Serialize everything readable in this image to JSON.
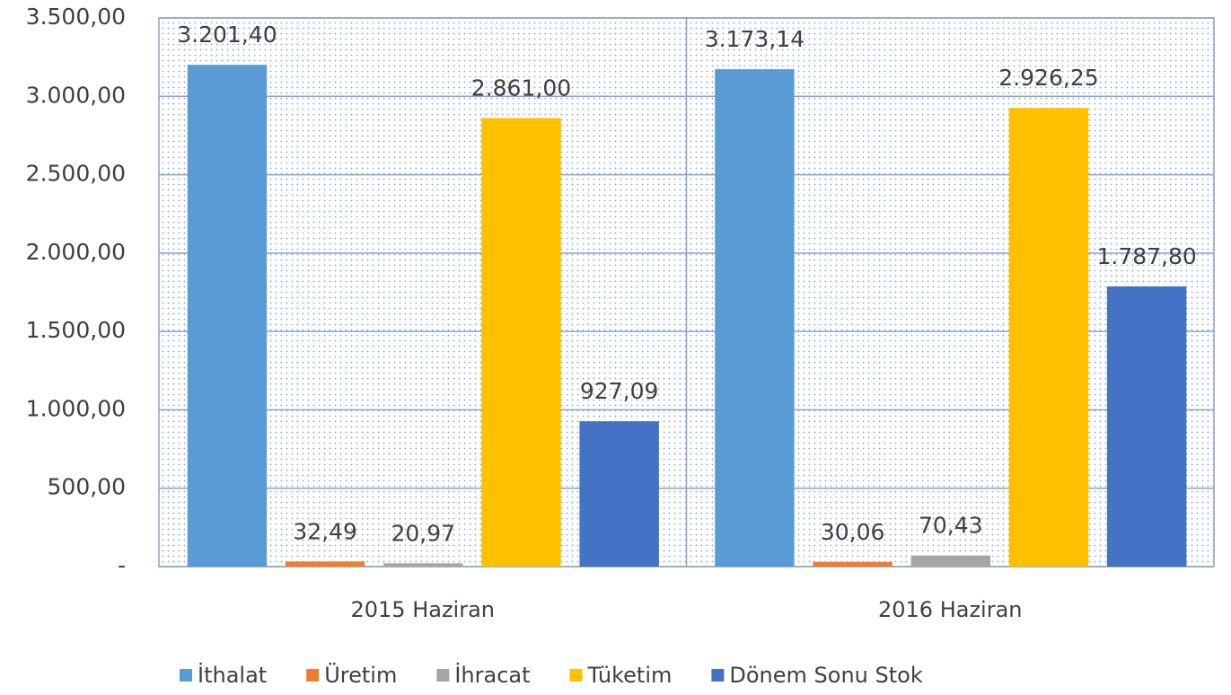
{
  "chart_data": {
    "type": "bar",
    "categories": [
      "2015 Haziran",
      "2016 Haziran"
    ],
    "series": [
      {
        "name": "İthalat",
        "color": "#5b9bd5",
        "values": [
          3201.4,
          3173.14
        ],
        "value_labels": [
          "3.201,40",
          "3.173,14"
        ]
      },
      {
        "name": "Üretim",
        "color": "#ed7d31",
        "values": [
          32.49,
          30.06
        ],
        "value_labels": [
          "32,49",
          "30,06"
        ]
      },
      {
        "name": "İhracat",
        "color": "#a5a5a5",
        "values": [
          20.97,
          70.43
        ],
        "value_labels": [
          "20,97",
          "70,43"
        ]
      },
      {
        "name": "Tüketim",
        "color": "#ffc000",
        "values": [
          2861.0,
          2926.25
        ],
        "value_labels": [
          "2.861,00",
          "2.926,25"
        ]
      },
      {
        "name": "Dönem Sonu Stok",
        "color": "#4472c4",
        "values": [
          927.09,
          1787.8
        ],
        "value_labels": [
          "927,09",
          "1.787,80"
        ]
      }
    ],
    "ylim": [
      0,
      3500
    ],
    "yticks": [
      {
        "value": 0,
        "label": "-"
      },
      {
        "value": 500,
        "label": "500,00"
      },
      {
        "value": 1000,
        "label": "1.000,00"
      },
      {
        "value": 1500,
        "label": "1.500,00"
      },
      {
        "value": 2000,
        "label": "2.000,00"
      },
      {
        "value": 2500,
        "label": "2.500,00"
      },
      {
        "value": 3000,
        "label": "3.000,00"
      },
      {
        "value": 3500,
        "label": "3.500,00"
      }
    ],
    "grid": true,
    "legend": "bottom"
  }
}
